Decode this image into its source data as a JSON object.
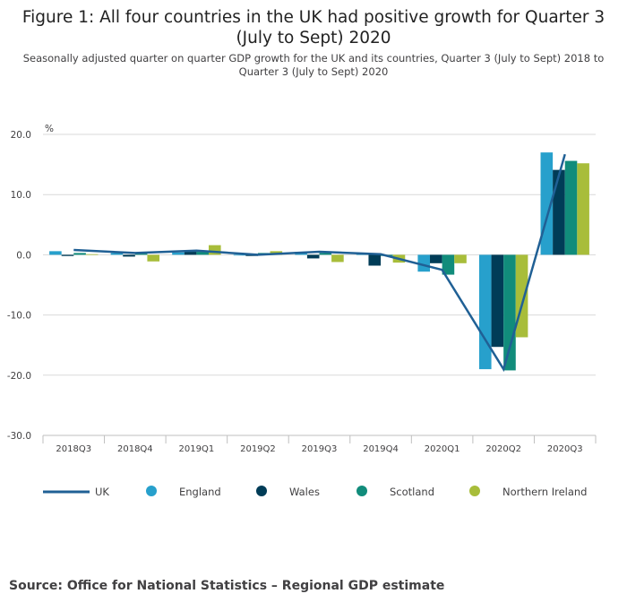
{
  "title": "Figure 1: All four countries in the UK had positive growth for Quarter 3 (July to Sept) 2020",
  "subtitle": "Seasonally adjusted quarter on quarter GDP growth for the UK and its countries, Quarter 3 (July to Sept) 2018 to Quarter 3 (July to Sept) 2020",
  "source": "Source: Office for National Statistics – Regional GDP estimate",
  "colors": {
    "uk": "#206095",
    "england": "#27a0cc",
    "wales": "#003c57",
    "scotland": "#118c7b",
    "northern_ireland": "#a8bd3a",
    "grid": "#d9d9d9",
    "axis": "#bfbfbf"
  },
  "chart_data": {
    "type": "bar",
    "categories": [
      "2018Q3",
      "2018Q4",
      "2019Q1",
      "2019Q2",
      "2019Q3",
      "2019Q4",
      "2020Q1",
      "2020Q2",
      "2020Q3"
    ],
    "ylabel": "%",
    "ylim": [
      -30,
      20
    ],
    "yticks": [
      20,
      10,
      0,
      -10,
      -20,
      -30
    ],
    "ytick_labels": [
      "20.0",
      "10.0",
      "0.0",
      "-10.0",
      "-20.0",
      "-30.0"
    ],
    "grid": true,
    "legend_position": "bottom",
    "series": [
      {
        "name": "England",
        "kind": "bar",
        "color": "#27a0cc",
        "values": [
          0.6,
          0.3,
          0.4,
          -0.1,
          0.5,
          0.1,
          -2.8,
          -19.0,
          17.0
        ]
      },
      {
        "name": "Wales",
        "kind": "bar",
        "color": "#003c57",
        "values": [
          -0.2,
          -0.3,
          0.5,
          -0.2,
          -0.6,
          -1.8,
          -1.4,
          -15.3,
          14.1
        ]
      },
      {
        "name": "Scotland",
        "kind": "bar",
        "color": "#118c7b",
        "values": [
          0.3,
          0.2,
          0.5,
          0.3,
          0.3,
          -0.2,
          -3.3,
          -19.2,
          15.6
        ]
      },
      {
        "name": "Northern Ireland",
        "kind": "bar",
        "color": "#a8bd3a",
        "values": [
          0.1,
          -1.1,
          1.6,
          0.6,
          -1.2,
          -1.3,
          -1.4,
          -13.7,
          15.2
        ]
      },
      {
        "name": "UK",
        "kind": "line",
        "color": "#206095",
        "values": [
          0.8,
          0.3,
          0.7,
          0.0,
          0.5,
          0.1,
          -2.5,
          -19.0,
          16.7
        ]
      }
    ]
  },
  "legend": [
    {
      "label": "UK",
      "type": "line",
      "color": "#206095"
    },
    {
      "label": "England",
      "type": "dot",
      "color": "#27a0cc"
    },
    {
      "label": "Wales",
      "type": "dot",
      "color": "#003c57"
    },
    {
      "label": "Scotland",
      "type": "dot",
      "color": "#118c7b"
    },
    {
      "label": "Northern Ireland",
      "type": "dot",
      "color": "#a8bd3a"
    }
  ]
}
